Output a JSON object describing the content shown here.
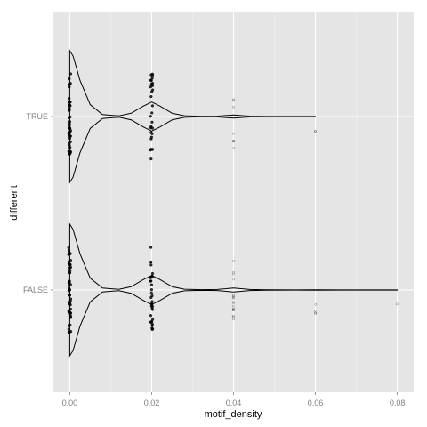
{
  "chart_data": {
    "type": "violin",
    "xlabel": "motif_density",
    "ylabel": "different",
    "xlim": [
      -0.004,
      0.084
    ],
    "x_ticks": [
      "0.00",
      "0.02",
      "0.04",
      "0.06",
      "0.08"
    ],
    "x_tick_values": [
      0,
      0.02,
      0.04,
      0.06,
      0.08
    ],
    "categories": [
      "TRUE",
      "FALSE"
    ],
    "grid": true,
    "legend": "none",
    "colors": {
      "panel_bg": "#e5e5e5",
      "grid_major": "#ffffff",
      "grid_minor": "#f2f2f2",
      "violin_stroke": "#000000",
      "point": "#000000"
    },
    "series": [
      {
        "category": "TRUE",
        "density_profile": [
          [
            0,
            1.0
          ],
          [
            0.0008,
            0.92
          ],
          [
            0.0025,
            0.55
          ],
          [
            0.005,
            0.18
          ],
          [
            0.008,
            0.03
          ],
          [
            0.012,
            0.01
          ],
          [
            0.015,
            0.05
          ],
          [
            0.018,
            0.16
          ],
          [
            0.02,
            0.22
          ],
          [
            0.022,
            0.16
          ],
          [
            0.025,
            0.05
          ],
          [
            0.028,
            0.012
          ],
          [
            0.032,
            0.004
          ],
          [
            0.036,
            0.006
          ],
          [
            0.04,
            0.025
          ],
          [
            0.044,
            0.006
          ],
          [
            0.048,
            0.002
          ],
          [
            0.055,
            0.002
          ],
          [
            0.06,
            0.001
          ]
        ],
        "points": [
          {
            "x": 0,
            "n": 42
          },
          {
            "x": 0.02,
            "n": 30
          },
          {
            "x": 0.04,
            "n": 8
          },
          {
            "x": 0.06,
            "n": 2
          }
        ]
      },
      {
        "category": "FALSE",
        "density_profile": [
          [
            0,
            1.0
          ],
          [
            0.0008,
            0.92
          ],
          [
            0.0025,
            0.55
          ],
          [
            0.005,
            0.18
          ],
          [
            0.008,
            0.03
          ],
          [
            0.012,
            0.01
          ],
          [
            0.015,
            0.05
          ],
          [
            0.018,
            0.16
          ],
          [
            0.02,
            0.22
          ],
          [
            0.022,
            0.16
          ],
          [
            0.025,
            0.05
          ],
          [
            0.028,
            0.012
          ],
          [
            0.032,
            0.005
          ],
          [
            0.036,
            0.008
          ],
          [
            0.04,
            0.03
          ],
          [
            0.044,
            0.008
          ],
          [
            0.048,
            0.003
          ],
          [
            0.055,
            0.002
          ],
          [
            0.06,
            0.004
          ],
          [
            0.07,
            0.001
          ],
          [
            0.08,
            0.001
          ]
        ],
        "points": [
          {
            "x": 0,
            "n": 48
          },
          {
            "x": 0.02,
            "n": 34
          },
          {
            "x": 0.04,
            "n": 18
          },
          {
            "x": 0.06,
            "n": 4
          },
          {
            "x": 0.08,
            "n": 1
          }
        ]
      }
    ]
  }
}
